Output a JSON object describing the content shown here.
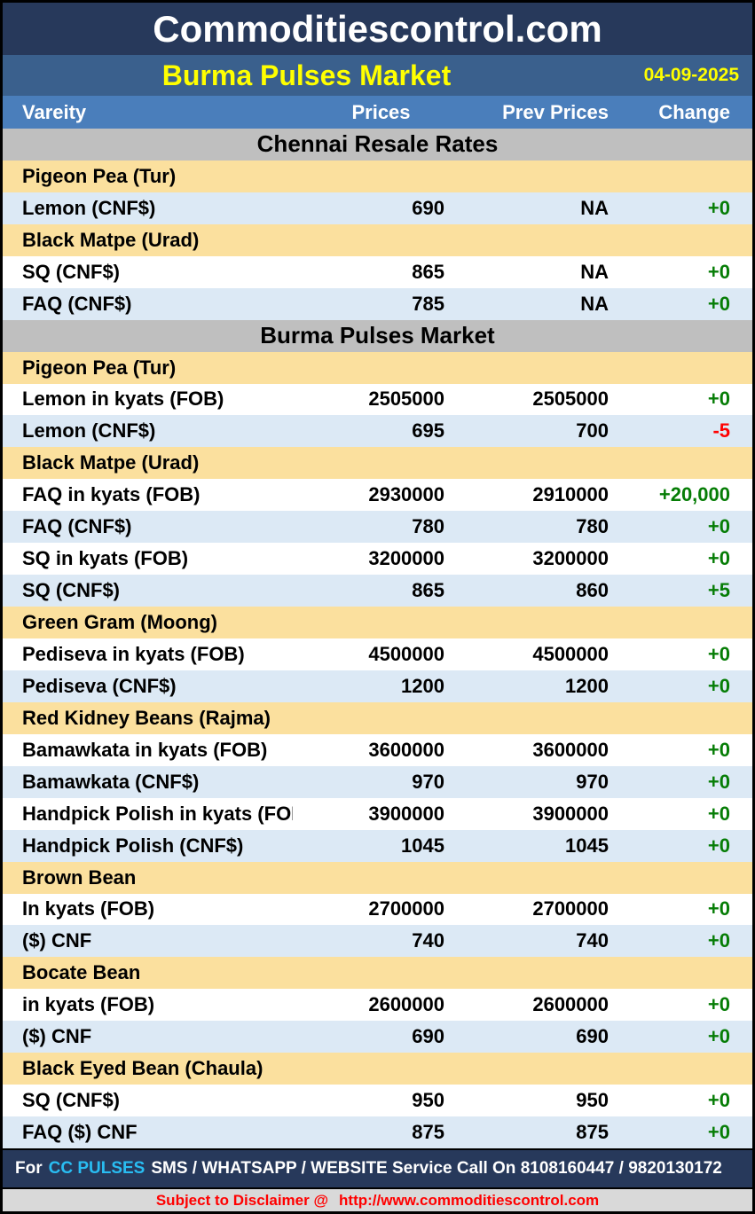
{
  "header": {
    "site_title": "Commoditiescontrol.com",
    "report_title": "Burma Pulses Market",
    "date": "04-09-2025"
  },
  "columns": {
    "variety": "Vareity",
    "prices": "Prices",
    "prev_prices": "Prev Prices",
    "change": "Change"
  },
  "table": {
    "rows": [
      {
        "type": "section",
        "label": "Chennai Resale Rates"
      },
      {
        "type": "category",
        "label": "Pigeon Pea (Tur)"
      },
      {
        "type": "data",
        "bg": "blue",
        "label": "Lemon (CNF$)",
        "prices": "690",
        "prev": "NA",
        "change": "+0",
        "change_color": "green"
      },
      {
        "type": "category",
        "label": "Black Matpe (Urad)"
      },
      {
        "type": "data",
        "bg": "white",
        "label": "SQ (CNF$)",
        "prices": "865",
        "prev": "NA",
        "change": "+0",
        "change_color": "green"
      },
      {
        "type": "data",
        "bg": "blue",
        "label": "FAQ (CNF$)",
        "prices": "785",
        "prev": "NA",
        "change": "+0",
        "change_color": "green"
      },
      {
        "type": "section",
        "label": "Burma Pulses Market"
      },
      {
        "type": "category",
        "label": "Pigeon Pea (Tur)"
      },
      {
        "type": "data",
        "bg": "white",
        "label": "Lemon in kyats (FOB)",
        "prices": "2505000",
        "prev": "2505000",
        "change": "+0",
        "change_color": "green"
      },
      {
        "type": "data",
        "bg": "blue",
        "label": "Lemon (CNF$)",
        "prices": "695",
        "prev": "700",
        "change": "-5",
        "change_color": "red"
      },
      {
        "type": "category",
        "label": "Black Matpe (Urad)"
      },
      {
        "type": "data",
        "bg": "white",
        "label": "FAQ in kyats (FOB)",
        "prices": "2930000",
        "prev": "2910000",
        "change": "+20,000",
        "change_color": "green"
      },
      {
        "type": "data",
        "bg": "blue",
        "label": "FAQ (CNF$)",
        "prices": "780",
        "prev": "780",
        "change": "+0",
        "change_color": "green"
      },
      {
        "type": "data",
        "bg": "white",
        "label": "SQ in kyats (FOB)",
        "prices": "3200000",
        "prev": "3200000",
        "change": "+0",
        "change_color": "green"
      },
      {
        "type": "data",
        "bg": "blue",
        "label": "SQ (CNF$)",
        "prices": "865",
        "prev": "860",
        "change": "+5",
        "change_color": "green"
      },
      {
        "type": "category",
        "label": "Green Gram (Moong)"
      },
      {
        "type": "data",
        "bg": "white",
        "label": "Pediseva in kyats (FOB)",
        "prices": "4500000",
        "prev": "4500000",
        "change": "+0",
        "change_color": "green"
      },
      {
        "type": "data",
        "bg": "blue",
        "label": "Pediseva (CNF$)",
        "prices": "1200",
        "prev": "1200",
        "change": "+0",
        "change_color": "green"
      },
      {
        "type": "category",
        "label": "Red Kidney Beans (Rajma)"
      },
      {
        "type": "data",
        "bg": "white",
        "label": "Bamawkata in kyats (FOB)",
        "prices": "3600000",
        "prev": "3600000",
        "change": "+0",
        "change_color": "green"
      },
      {
        "type": "data",
        "bg": "blue",
        "label": "Bamawkata (CNF$)",
        "prices": "970",
        "prev": "970",
        "change": "+0",
        "change_color": "green"
      },
      {
        "type": "data",
        "bg": "white",
        "label": "Handpick Polish in kyats (FOB)",
        "prices": "3900000",
        "prev": "3900000",
        "change": "+0",
        "change_color": "green"
      },
      {
        "type": "data",
        "bg": "blue",
        "label": "Handpick Polish (CNF$)",
        "prices": "1045",
        "prev": "1045",
        "change": "+0",
        "change_color": "green"
      },
      {
        "type": "category",
        "label": "Brown Bean"
      },
      {
        "type": "data",
        "bg": "white",
        "label": "In kyats (FOB)",
        "prices": "2700000",
        "prev": "2700000",
        "change": "+0",
        "change_color": "green"
      },
      {
        "type": "data",
        "bg": "blue",
        "label": "($) CNF",
        "prices": "740",
        "prev": "740",
        "change": "+0",
        "change_color": "green"
      },
      {
        "type": "category",
        "label": "Bocate Bean"
      },
      {
        "type": "data",
        "bg": "white",
        "label": "in kyats (FOB)",
        "prices": "2600000",
        "prev": "2600000",
        "change": "+0",
        "change_color": "green"
      },
      {
        "type": "data",
        "bg": "blue",
        "label": "($) CNF",
        "prices": "690",
        "prev": "690",
        "change": "+0",
        "change_color": "green"
      },
      {
        "type": "category",
        "label": "Black Eyed Bean (Chaula)"
      },
      {
        "type": "data",
        "bg": "white",
        "label": "SQ (CNF$)",
        "prices": "950",
        "prev": "950",
        "change": "+0",
        "change_color": "green"
      },
      {
        "type": "data",
        "bg": "blue",
        "label": "FAQ ($) CNF",
        "prices": "875",
        "prev": "875",
        "change": "+0",
        "change_color": "green"
      }
    ]
  },
  "footer": {
    "service_prefix": "For",
    "service_brand": "CC PULSES",
    "service_rest": "SMS / WHATSAPP / WEBSITE Service Call On 8108160447 / 9820130172",
    "disclaimer_prefix": "Subject to Disclaimer @",
    "disclaimer_url": "http://www.commoditiescontrol.com"
  },
  "colors": {
    "green": "#067D06",
    "red": "#FF0000",
    "navy": "#27395B",
    "title_blue": "#3A608D",
    "header_blue": "#4A7EBB",
    "section_gray": "#BFBFBF",
    "category_cream": "#FBE09E",
    "row_blue": "#DCE9F5",
    "yellow": "#FFFF00",
    "brand_cyan": "#29BDF2",
    "disclaimer_gray": "#D9D9D9"
  }
}
